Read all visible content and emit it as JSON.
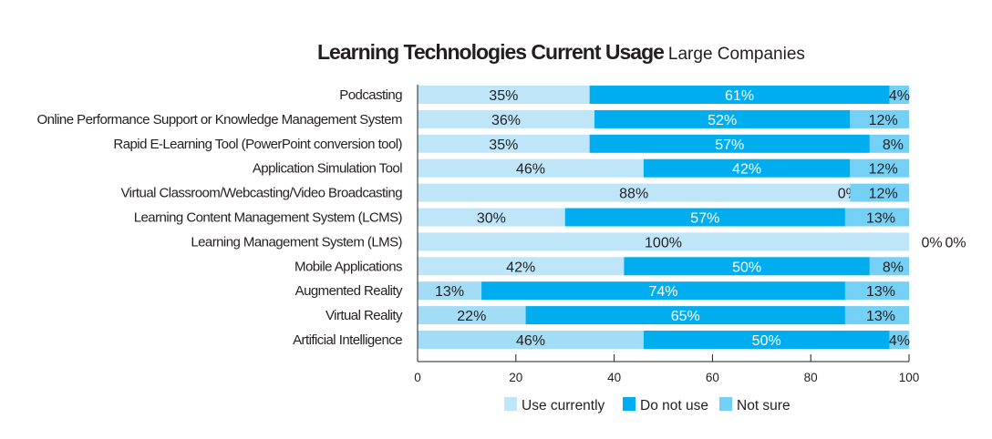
{
  "chart_data": {
    "type": "bar",
    "orientation": "horizontal",
    "stacked": true,
    "title": "Learning Technologies Current Usage",
    "subtitle": "Large Companies",
    "xlabel": "",
    "ylabel": "",
    "xlim": [
      0,
      100
    ],
    "xticks": [
      "0",
      "20",
      "40",
      "60",
      "80",
      "100"
    ],
    "grid": false,
    "legend_position": "bottom",
    "categories": [
      "Podcasting",
      "Online Performance Support or Knowledge Management System",
      "Rapid E-Learning Tool (PowerPoint conversion tool)",
      "Application Simulation Tool",
      "Virtual Classroom/Webcasting/Video Broadcasting",
      "Learning Content Management System (LCMS)",
      "Learning Management System (LMS)",
      "Mobile Applications",
      "Augmented Reality",
      "Virtual Reality",
      "Artificial Intelligence"
    ],
    "series": [
      {
        "name": "Use currently",
        "color": "#bee6f8",
        "values": [
          35,
          36,
          35,
          46,
          88,
          30,
          100,
          42,
          13,
          22,
          46
        ]
      },
      {
        "name": "Do not use",
        "color": "#00adee",
        "values": [
          61,
          52,
          57,
          42,
          0,
          57,
          0,
          50,
          74,
          65,
          50
        ]
      },
      {
        "name": "Not sure",
        "color": "#74d0f4",
        "values": [
          4,
          12,
          8,
          12,
          12,
          13,
          0,
          8,
          13,
          13,
          4
        ]
      }
    ],
    "alt_first_segment_color": "#a3dcf5",
    "alt_first_segment_rows": [
      8,
      9,
      10
    ]
  }
}
